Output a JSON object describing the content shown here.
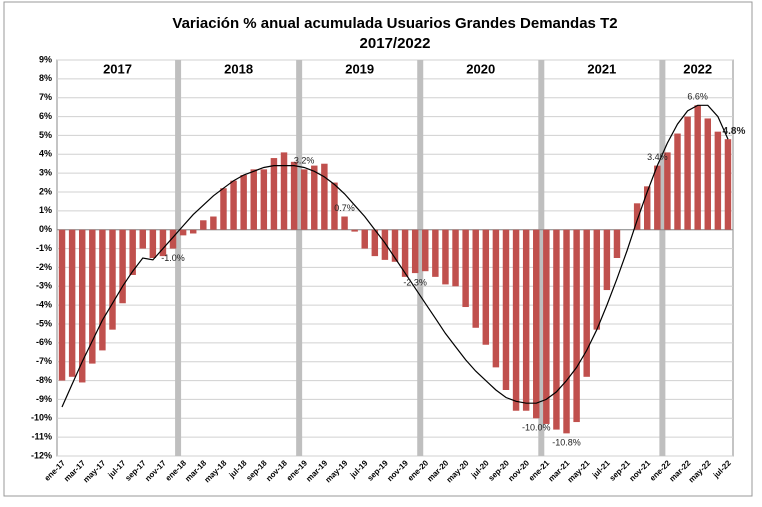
{
  "chart_data": {
    "type": "bar",
    "title": "Variación % anual acumulada Usuarios Grandes Demandas T2",
    "subtitle": "2017/2022",
    "years": [
      "2017",
      "2018",
      "2019",
      "2020",
      "2021",
      "2022"
    ],
    "categories": [
      "ene-17",
      null,
      "mar-17",
      null,
      "may-17",
      null,
      "jul-17",
      null,
      "sep-17",
      null,
      "nov-17",
      null,
      "ene-18",
      null,
      "mar-18",
      null,
      "may-18",
      null,
      "jul-18",
      null,
      "sep-18",
      null,
      "nov-18",
      null,
      "ene-19",
      null,
      "mar-19",
      null,
      "may-19",
      null,
      "jul-19",
      null,
      "sep-19",
      null,
      "nov-19",
      null,
      "ene-20",
      null,
      "mar-20",
      null,
      "may-20",
      null,
      "jul-20",
      null,
      "sep-20",
      null,
      "nov-20",
      null,
      "ene-21",
      null,
      "mar-21",
      null,
      "may-21",
      null,
      "jul-21",
      null,
      "sep-21",
      null,
      "nov-21",
      null,
      "ene-22",
      null,
      "mar-22",
      null,
      "may-22",
      null,
      "jul-22"
    ],
    "series": [
      {
        "color": "#c0504d",
        "values": [
          -8.0,
          -7.8,
          -8.1,
          -7.1,
          -6.4,
          -5.3,
          -3.9,
          -2.4,
          -1.0,
          -1.5,
          -1.4,
          -1.0,
          -0.3,
          -0.2,
          0.5,
          0.7,
          2.2,
          2.6,
          2.9,
          3.2,
          3.2,
          3.8,
          4.1,
          3.6,
          3.2,
          3.4,
          3.5,
          2.5,
          0.7,
          -0.1,
          -1.0,
          -1.4,
          -1.6,
          -1.7,
          -2.5,
          -2.3,
          -2.2,
          -2.5,
          -2.9,
          -3.0,
          -4.1,
          -5.2,
          -6.1,
          -7.3,
          -8.5,
          -9.6,
          -9.6,
          -10.0,
          -10.3,
          -10.6,
          -10.8,
          -10.2,
          -7.8,
          -5.3,
          -3.2,
          -1.5,
          0.0,
          1.4,
          2.3,
          3.4,
          4.1,
          5.1,
          6.0,
          6.6,
          5.9,
          5.2,
          4.8
        ],
        "value_labels": [
          null,
          null,
          null,
          null,
          null,
          null,
          null,
          null,
          null,
          null,
          null,
          "-1.0%",
          null,
          null,
          null,
          null,
          null,
          null,
          null,
          null,
          null,
          null,
          null,
          null,
          "3.2%",
          null,
          null,
          null,
          "0.7%",
          null,
          null,
          null,
          null,
          null,
          null,
          "-2.3%",
          null,
          null,
          null,
          null,
          null,
          null,
          null,
          null,
          null,
          null,
          null,
          "-10.0%",
          null,
          null,
          "-10.8%",
          null,
          null,
          null,
          null,
          null,
          null,
          null,
          null,
          "3.4%",
          null,
          null,
          null,
          "6.6%",
          null,
          null,
          "4.8%"
        ]
      },
      {
        "type": "line",
        "color": "#000000",
        "values": [
          -9.4,
          -8.2,
          -7.0,
          -5.9,
          -4.8,
          -3.9,
          -3.0,
          -2.2,
          -1.5,
          -1.6,
          -1.0,
          -0.4,
          0.2,
          0.8,
          1.3,
          1.8,
          2.2,
          2.6,
          2.9,
          3.1,
          3.3,
          3.4,
          3.4,
          3.4,
          3.3,
          3.1,
          2.8,
          2.4,
          1.9,
          1.3,
          0.7,
          0.0,
          -0.7,
          -1.5,
          -2.3,
          -3.1,
          -3.9,
          -4.7,
          -5.5,
          -6.2,
          -6.9,
          -7.5,
          -8.0,
          -8.5,
          -8.9,
          -9.1,
          -9.2,
          -9.2,
          -9.0,
          -8.6,
          -8.0,
          -7.3,
          -6.4,
          -5.3,
          -4.0,
          -2.6,
          -1.1,
          0.5,
          2.0,
          3.4,
          4.6,
          5.6,
          6.3,
          6.6,
          6.6,
          6.0,
          4.8
        ]
      }
    ],
    "ylim": [
      -12,
      9
    ],
    "yticks": [
      {
        "value": -12,
        "label": "-12%"
      },
      {
        "value": -11,
        "label": "-11%"
      },
      {
        "value": -10,
        "label": "-10%"
      },
      {
        "value": -9,
        "label": "-9%"
      },
      {
        "value": -8,
        "label": "-8%"
      },
      {
        "value": -7,
        "label": "-7%"
      },
      {
        "value": -6,
        "label": "-6%"
      },
      {
        "value": -5,
        "label": "-5%"
      },
      {
        "value": -4,
        "label": "-4%"
      },
      {
        "value": -3,
        "label": "-3%"
      },
      {
        "value": -2,
        "label": "-2%"
      },
      {
        "value": -1,
        "label": "-1%"
      },
      {
        "value": 0,
        "label": "0%"
      },
      {
        "value": 1,
        "label": "1%"
      },
      {
        "value": 2,
        "label": "2%"
      },
      {
        "value": 3,
        "label": "3%"
      },
      {
        "value": 4,
        "label": "4%"
      },
      {
        "value": 5,
        "label": "5%"
      },
      {
        "value": 6,
        "label": "6%"
      },
      {
        "value": 7,
        "label": "7%"
      },
      {
        "value": 8,
        "label": "8%"
      },
      {
        "value": 9,
        "label": "9%"
      }
    ],
    "grid": true
  }
}
